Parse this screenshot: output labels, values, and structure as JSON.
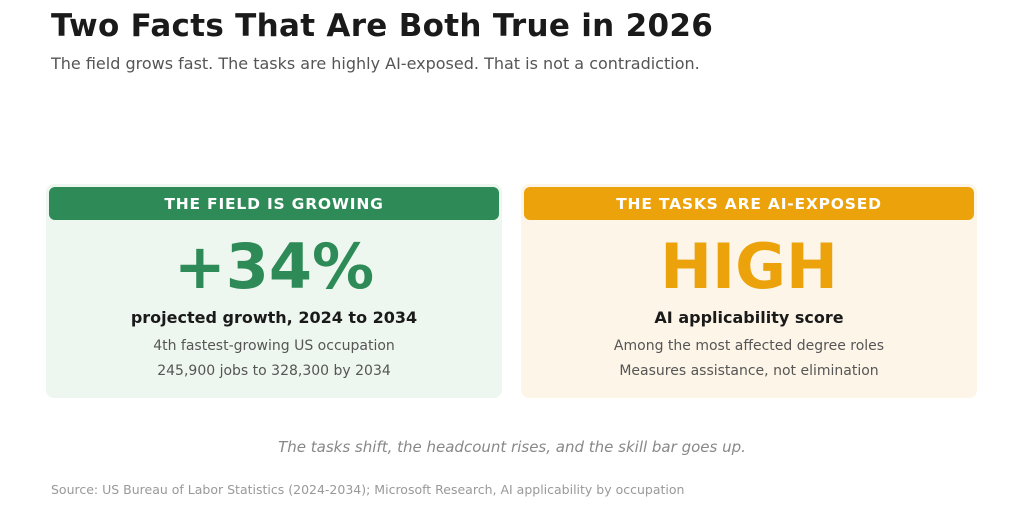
{
  "title": "Two Facts That Are Both True in 2026",
  "subtitle": "The field grows fast. The tasks are highly AI-exposed. That is not a contradiction.",
  "cards": [
    {
      "header": "THE FIELD IS GROWING",
      "value": "+34%",
      "label": "projected growth, 2024 to 2034",
      "details": [
        "4th fastest-growing US occupation",
        "245,900 jobs to 328,300 by 2034"
      ],
      "accent_color": "#2e8b57",
      "background_color": "#eef7ef"
    },
    {
      "header": "THE TASKS ARE AI-EXPOSED",
      "value": "HIGH",
      "label": "AI applicability score",
      "details": [
        "Among the most affected degree roles",
        "Measures assistance, not elimination"
      ],
      "accent_color": "#eca20b",
      "background_color": "#fdf6e8"
    }
  ],
  "tagline": "The tasks shift, the headcount rises, and the skill bar goes up.",
  "source": "Source: US Bureau of Labor Statistics (2024-2034); Microsoft Research, AI applicability by occupation"
}
